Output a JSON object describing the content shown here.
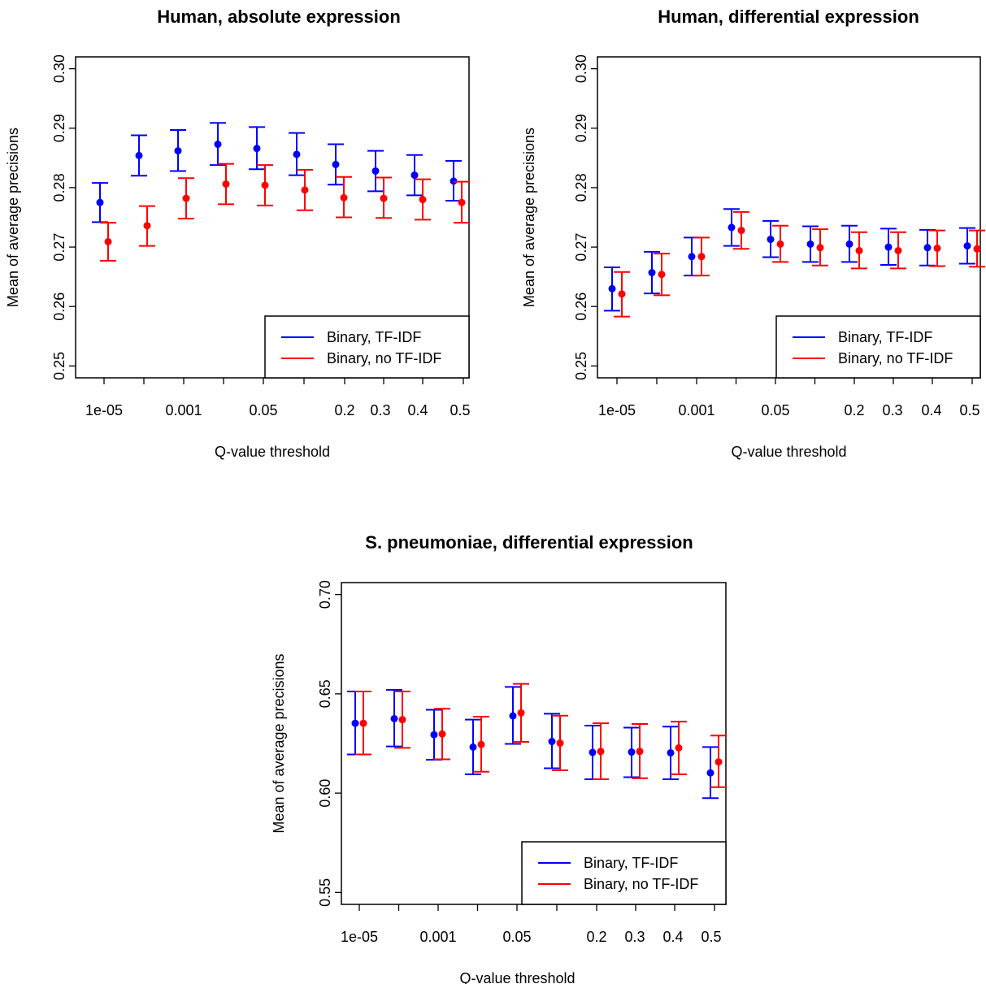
{
  "colors": {
    "tfidf": "#0000ff",
    "no_tfidf": "#ff0000",
    "axis": "#000000",
    "background": "#ffffff"
  },
  "chart_data": [
    {
      "type": "scatter",
      "title": "Human, absolute expression",
      "xlabel": "Q-value threshold",
      "ylabel": "Mean of average precisions",
      "x_ticks": [
        "1e-05",
        "0.001",
        "0.05",
        "0.2",
        "0.3",
        "0.4",
        "0.5"
      ],
      "ylim": [
        0.25,
        0.3
      ],
      "y_ticks": [
        "0.25",
        "0.26",
        "0.27",
        "0.28",
        "0.29",
        "0.30"
      ],
      "legend_position": "bottom-right",
      "series": [
        {
          "name": "Binary, TF-IDF",
          "color": "#0000ff",
          "values": [
            0.2775,
            0.2854,
            0.2862,
            0.2873,
            0.2866,
            0.2856,
            0.2839,
            0.2828,
            0.2821,
            0.2811
          ],
          "lower": [
            0.2742,
            0.282,
            0.2828,
            0.2838,
            0.2831,
            0.2821,
            0.2805,
            0.2794,
            0.2787,
            0.2778
          ],
          "upper": [
            0.2808,
            0.2888,
            0.2897,
            0.2909,
            0.2902,
            0.2892,
            0.2873,
            0.2862,
            0.2855,
            0.2845
          ]
        },
        {
          "name": "Binary, no TF-IDF",
          "color": "#ff0000",
          "values": [
            0.2709,
            0.2736,
            0.2782,
            0.2806,
            0.2804,
            0.2796,
            0.2783,
            0.2782,
            0.278,
            0.2775
          ],
          "lower": [
            0.2677,
            0.2702,
            0.2748,
            0.2772,
            0.277,
            0.2762,
            0.275,
            0.2749,
            0.2746,
            0.2741
          ],
          "upper": [
            0.2741,
            0.2769,
            0.2816,
            0.284,
            0.2838,
            0.283,
            0.2818,
            0.2817,
            0.2814,
            0.281
          ]
        }
      ]
    },
    {
      "type": "scatter",
      "title": "Human, differential expression",
      "xlabel": "Q-value threshold",
      "ylabel": "Mean of average precisions",
      "x_ticks": [
        "1e-05",
        "0.001",
        "0.05",
        "0.2",
        "0.3",
        "0.4",
        "0.5"
      ],
      "ylim": [
        0.25,
        0.3
      ],
      "y_ticks": [
        "0.25",
        "0.26",
        "0.27",
        "0.28",
        "0.29",
        "0.30"
      ],
      "legend_position": "bottom-right",
      "series": [
        {
          "name": "Binary, TF-IDF",
          "color": "#0000ff",
          "values": [
            0.263,
            0.2657,
            0.2684,
            0.2733,
            0.2713,
            0.2705,
            0.2705,
            0.27,
            0.2699,
            0.2702
          ],
          "lower": [
            0.2593,
            0.2622,
            0.2652,
            0.2702,
            0.2683,
            0.2675,
            0.2675,
            0.267,
            0.2669,
            0.2672
          ],
          "upper": [
            0.2666,
            0.2692,
            0.2716,
            0.2764,
            0.2744,
            0.2735,
            0.2736,
            0.2731,
            0.2729,
            0.2732
          ]
        },
        {
          "name": "Binary, no TF-IDF",
          "color": "#ff0000",
          "values": [
            0.2621,
            0.2654,
            0.2684,
            0.2728,
            0.2705,
            0.2699,
            0.2694,
            0.2694,
            0.2698,
            0.2697
          ],
          "lower": [
            0.2583,
            0.2619,
            0.2652,
            0.2697,
            0.2675,
            0.2669,
            0.2664,
            0.2664,
            0.2668,
            0.2667
          ],
          "upper": [
            0.2658,
            0.2689,
            0.2716,
            0.2759,
            0.2736,
            0.273,
            0.2725,
            0.2725,
            0.2728,
            0.2728
          ]
        }
      ]
    },
    {
      "type": "scatter",
      "title": "S. pneumoniae, differential expression",
      "xlabel": "Q-value threshold",
      "ylabel": "Mean of average precisions",
      "x_ticks": [
        "1e-05",
        "0.001",
        "0.05",
        "0.2",
        "0.3",
        "0.4",
        "0.5"
      ],
      "ylim": [
        0.55,
        0.7
      ],
      "y_ticks": [
        "0.55",
        "0.60",
        "0.65",
        "0.70"
      ],
      "legend_position": "bottom-right",
      "series": [
        {
          "name": "Binary, TF-IDF",
          "color": "#0000ff",
          "values": [
            0.6352,
            0.6375,
            0.6294,
            0.6232,
            0.6389,
            0.626,
            0.6205,
            0.6207,
            0.6203,
            0.6102
          ],
          "lower": [
            0.6195,
            0.6235,
            0.6168,
            0.6095,
            0.6248,
            0.6125,
            0.607,
            0.608,
            0.607,
            0.5975
          ],
          "upper": [
            0.6512,
            0.652,
            0.642,
            0.637,
            0.6535,
            0.64,
            0.634,
            0.633,
            0.6335,
            0.6232
          ]
        },
        {
          "name": "Binary, no TF-IDF",
          "color": "#ff0000",
          "values": [
            0.6352,
            0.637,
            0.6298,
            0.6245,
            0.6404,
            0.6252,
            0.621,
            0.621,
            0.6228,
            0.6157
          ],
          "lower": [
            0.6195,
            0.6228,
            0.617,
            0.6108,
            0.6258,
            0.6115,
            0.607,
            0.6075,
            0.6095,
            0.603
          ],
          "upper": [
            0.6512,
            0.6512,
            0.6425,
            0.6385,
            0.655,
            0.639,
            0.6352,
            0.6348,
            0.636,
            0.629
          ]
        }
      ]
    }
  ]
}
